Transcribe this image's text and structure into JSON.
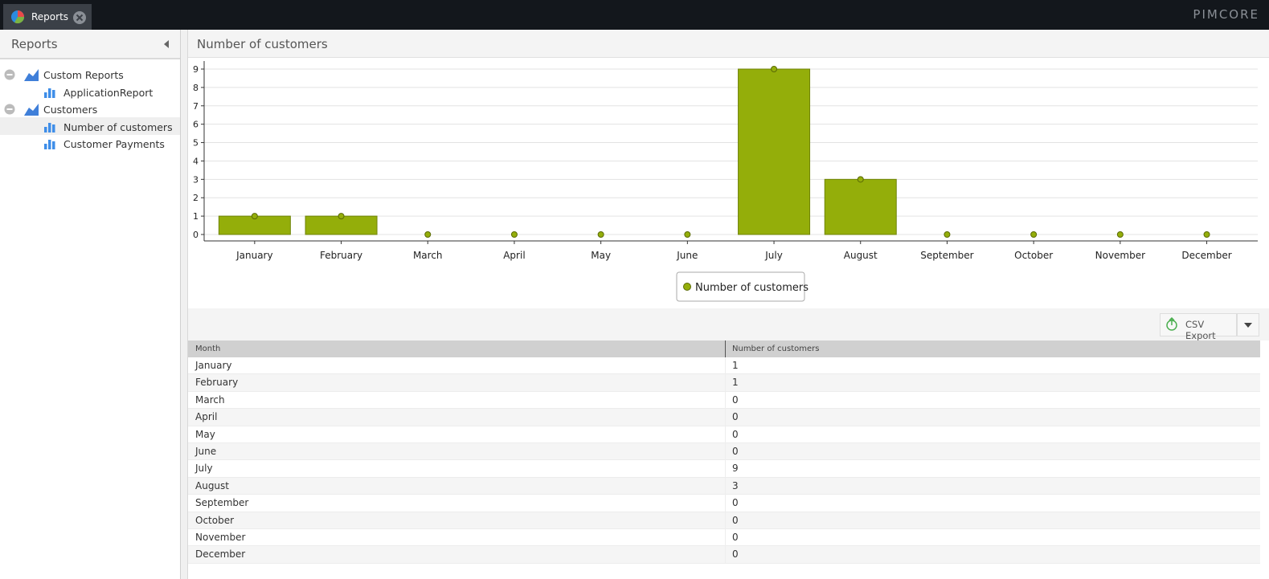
{
  "tab": {
    "label": "Reports"
  },
  "brand": "PIMCORE",
  "sidebar": {
    "title": "Reports",
    "tree": [
      {
        "label": "Custom Reports",
        "children": [
          "ApplicationReport"
        ]
      },
      {
        "label": "Customers",
        "children": [
          "Number of customers",
          "Customer Payments"
        ]
      }
    ]
  },
  "panel": {
    "title": "Number of customers"
  },
  "chart_data": {
    "type": "bar",
    "categories": [
      "January",
      "February",
      "March",
      "April",
      "May",
      "June",
      "July",
      "August",
      "September",
      "October",
      "November",
      "December"
    ],
    "series": [
      {
        "name": "Number of customers",
        "color": "#94ae0a",
        "values": [
          1,
          1,
          0,
          0,
          0,
          0,
          9,
          3,
          0,
          0,
          0,
          0
        ]
      }
    ],
    "ylim": [
      0,
      9
    ],
    "yticks": [
      0,
      1,
      2,
      3,
      4,
      5,
      6,
      7,
      8,
      9
    ],
    "grid": true,
    "legend": "bottom"
  },
  "toolbar": {
    "export": "CSV Export"
  },
  "table": {
    "columns": [
      "Month",
      "Number of customers"
    ],
    "rows": [
      [
        "January",
        1
      ],
      [
        "February",
        1
      ],
      [
        "March",
        0
      ],
      [
        "April",
        0
      ],
      [
        "May",
        0
      ],
      [
        "June",
        0
      ],
      [
        "July",
        9
      ],
      [
        "August",
        3
      ],
      [
        "September",
        0
      ],
      [
        "October",
        0
      ],
      [
        "November",
        0
      ],
      [
        "December",
        0
      ]
    ]
  }
}
